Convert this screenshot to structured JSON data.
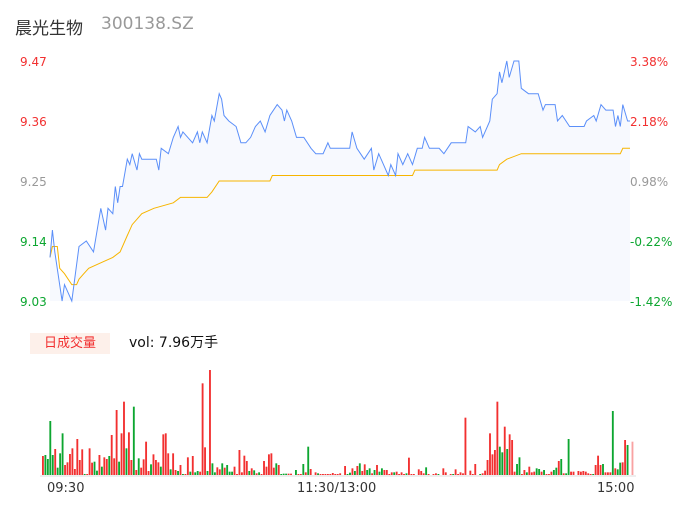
{
  "header": {
    "name": "晨光生物",
    "code": "300138.SZ"
  },
  "colors": {
    "up": "#f23030",
    "down": "#0da630",
    "flat": "#999999",
    "price_line": "#5b8ff9",
    "avg_line": "#f7b500",
    "area": "#f7f9fe"
  },
  "price_axis": {
    "left": [
      {
        "label": "9.47",
        "tone": "up"
      },
      {
        "label": "9.36",
        "tone": "up"
      },
      {
        "label": "9.25",
        "tone": "flat"
      },
      {
        "label": "9.14",
        "tone": "down"
      },
      {
        "label": "9.03",
        "tone": "down"
      }
    ],
    "right": [
      {
        "label": "3.38%",
        "tone": "up"
      },
      {
        "label": "2.18%",
        "tone": "up"
      },
      {
        "label": "0.98%",
        "tone": "flat"
      },
      {
        "label": "-0.22%",
        "tone": "down"
      },
      {
        "label": "-1.42%",
        "tone": "down"
      }
    ],
    "min": 9.03,
    "max": 9.47
  },
  "volume": {
    "tag": "日成交量",
    "text": "vol: 7.96万手"
  },
  "time_axis": [
    "09:30",
    "11:30/13:00",
    "15:00"
  ],
  "chart_data": {
    "type": "line",
    "minutes_total": 240,
    "price": [
      [
        0,
        9.11
      ],
      [
        1,
        9.16
      ],
      [
        2,
        9.12
      ],
      [
        5,
        9.03
      ],
      [
        6,
        9.06
      ],
      [
        9,
        9.03
      ],
      [
        12,
        9.13
      ],
      [
        15,
        9.14
      ],
      [
        18,
        9.12
      ],
      [
        21,
        9.2
      ],
      [
        23,
        9.16
      ],
      [
        24,
        9.2
      ],
      [
        26,
        9.19
      ],
      [
        27,
        9.24
      ],
      [
        28,
        9.21
      ],
      [
        29,
        9.24
      ],
      [
        30,
        9.24
      ],
      [
        32,
        9.29
      ],
      [
        33,
        9.28
      ],
      [
        34,
        9.3
      ],
      [
        36,
        9.27
      ],
      [
        37,
        9.3
      ],
      [
        38,
        9.29
      ],
      [
        40,
        9.29
      ],
      [
        44,
        9.29
      ],
      [
        45,
        9.27
      ],
      [
        46,
        9.31
      ],
      [
        49,
        9.3
      ],
      [
        51,
        9.33
      ],
      [
        53,
        9.35
      ],
      [
        54,
        9.33
      ],
      [
        55,
        9.34
      ],
      [
        57,
        9.33
      ],
      [
        59,
        9.32
      ],
      [
        61,
        9.34
      ],
      [
        62,
        9.32
      ],
      [
        63,
        9.34
      ],
      [
        65,
        9.32
      ],
      [
        67,
        9.37
      ],
      [
        68,
        9.36
      ],
      [
        70,
        9.41
      ],
      [
        71,
        9.4
      ],
      [
        72,
        9.37
      ],
      [
        74,
        9.36
      ],
      [
        77,
        9.35
      ],
      [
        79,
        9.32
      ],
      [
        81,
        9.32
      ],
      [
        83,
        9.33
      ],
      [
        85,
        9.35
      ],
      [
        87,
        9.36
      ],
      [
        89,
        9.34
      ],
      [
        91,
        9.37
      ],
      [
        94,
        9.39
      ],
      [
        96,
        9.38
      ],
      [
        97,
        9.36
      ],
      [
        98,
        9.38
      ],
      [
        100,
        9.36
      ],
      [
        102,
        9.33
      ],
      [
        105,
        9.33
      ],
      [
        108,
        9.31
      ],
      [
        110,
        9.3
      ],
      [
        113,
        9.3
      ],
      [
        115,
        9.32
      ],
      [
        116,
        9.31
      ],
      [
        124,
        9.31
      ],
      [
        125,
        9.34
      ],
      [
        127,
        9.31
      ],
      [
        130,
        9.29
      ],
      [
        133,
        9.31
      ],
      [
        134,
        9.27
      ],
      [
        136,
        9.3
      ],
      [
        138,
        9.28
      ],
      [
        140,
        9.26
      ],
      [
        141,
        9.28
      ],
      [
        143,
        9.26
      ],
      [
        144,
        9.3
      ],
      [
        146,
        9.28
      ],
      [
        148,
        9.3
      ],
      [
        150,
        9.28
      ],
      [
        152,
        9.31
      ],
      [
        154,
        9.31
      ],
      [
        155,
        9.33
      ],
      [
        157,
        9.31
      ],
      [
        161,
        9.31
      ],
      [
        163,
        9.3
      ],
      [
        166,
        9.32
      ],
      [
        168,
        9.32
      ],
      [
        172,
        9.32
      ],
      [
        173,
        9.35
      ],
      [
        176,
        9.34
      ],
      [
        178,
        9.35
      ],
      [
        179,
        9.33
      ],
      [
        182,
        9.36
      ],
      [
        183,
        9.4
      ],
      [
        185,
        9.41
      ],
      [
        186,
        9.45
      ],
      [
        187,
        9.43
      ],
      [
        189,
        9.47
      ],
      [
        190,
        9.44
      ],
      [
        192,
        9.47
      ],
      [
        194,
        9.47
      ],
      [
        195,
        9.42
      ],
      [
        198,
        9.41
      ],
      [
        202,
        9.41
      ],
      [
        204,
        9.38
      ],
      [
        205,
        9.39
      ],
      [
        209,
        9.39
      ],
      [
        210,
        9.36
      ],
      [
        212,
        9.37
      ],
      [
        215,
        9.35
      ],
      [
        221,
        9.35
      ],
      [
        222,
        9.36
      ],
      [
        225,
        9.37
      ],
      [
        226,
        9.36
      ],
      [
        228,
        9.39
      ],
      [
        230,
        9.38
      ],
      [
        233,
        9.38
      ],
      [
        234,
        9.35
      ],
      [
        235,
        9.37
      ],
      [
        236,
        9.35
      ],
      [
        237,
        9.39
      ],
      [
        239,
        9.36
      ],
      [
        240,
        9.36
      ]
    ],
    "average": [
      [
        0,
        9.11
      ],
      [
        1,
        9.13
      ],
      [
        3,
        9.13
      ],
      [
        4,
        9.09
      ],
      [
        6,
        9.08
      ],
      [
        9,
        9.06
      ],
      [
        11,
        9.06
      ],
      [
        12,
        9.07
      ],
      [
        14,
        9.08
      ],
      [
        16,
        9.09
      ],
      [
        21,
        9.1
      ],
      [
        26,
        9.11
      ],
      [
        29,
        9.12
      ],
      [
        32,
        9.15
      ],
      [
        34,
        9.17
      ],
      [
        36,
        9.18
      ],
      [
        38,
        9.19
      ],
      [
        43,
        9.2
      ],
      [
        51,
        9.21
      ],
      [
        54,
        9.22
      ],
      [
        65,
        9.22
      ],
      [
        67,
        9.23
      ],
      [
        70,
        9.25
      ],
      [
        91,
        9.25
      ],
      [
        92,
        9.26
      ],
      [
        150,
        9.26
      ],
      [
        151,
        9.27
      ],
      [
        185,
        9.27
      ],
      [
        186,
        9.28
      ],
      [
        189,
        9.29
      ],
      [
        195,
        9.3
      ],
      [
        236,
        9.3
      ],
      [
        237,
        9.31
      ],
      [
        240,
        9.31
      ]
    ],
    "volumes": [
      [
        57,
        "r"
      ],
      [
        60,
        "g"
      ],
      [
        48,
        "g"
      ],
      [
        162,
        "g"
      ],
      [
        60,
        "g"
      ],
      [
        78,
        "r"
      ],
      [
        22,
        "g"
      ],
      [
        65,
        "g"
      ],
      [
        125,
        "g"
      ],
      [
        30,
        "r"
      ],
      [
        38,
        "r"
      ],
      [
        63,
        "r"
      ],
      [
        80,
        "r"
      ],
      [
        18,
        "r"
      ],
      [
        108,
        "r"
      ],
      [
        45,
        "r"
      ],
      [
        77,
        "r"
      ],
      [
        3,
        "g"
      ],
      [
        3,
        "r"
      ],
      [
        80,
        "r"
      ],
      [
        37,
        "r"
      ],
      [
        40,
        "g"
      ],
      [
        13,
        "g"
      ],
      [
        60,
        "r"
      ],
      [
        25,
        "g"
      ],
      [
        53,
        "r"
      ],
      [
        48,
        "r"
      ],
      [
        57,
        "g"
      ],
      [
        120,
        "r"
      ],
      [
        50,
        "r"
      ],
      [
        195,
        "r"
      ],
      [
        40,
        "g"
      ],
      [
        125,
        "r"
      ],
      [
        220,
        "r"
      ],
      [
        80,
        "g"
      ],
      [
        128,
        "r"
      ],
      [
        45,
        "r"
      ],
      [
        205,
        "g"
      ],
      [
        15,
        "r"
      ],
      [
        50,
        "g"
      ],
      [
        22,
        "r"
      ],
      [
        47,
        "r"
      ],
      [
        100,
        "r"
      ],
      [
        12,
        "r"
      ],
      [
        32,
        "g"
      ],
      [
        62,
        "r"
      ],
      [
        45,
        "r"
      ],
      [
        38,
        "r"
      ],
      [
        25,
        "g"
      ],
      [
        122,
        "r"
      ],
      [
        125,
        "r"
      ],
      [
        65,
        "r"
      ],
      [
        17,
        "g"
      ],
      [
        65,
        "r"
      ],
      [
        15,
        "r"
      ],
      [
        12,
        "g"
      ],
      [
        30,
        "r"
      ],
      [
        3,
        "g"
      ],
      [
        3,
        "r"
      ],
      [
        53,
        "r"
      ],
      [
        10,
        "g"
      ],
      [
        57,
        "r"
      ],
      [
        8,
        "g"
      ],
      [
        12,
        "g"
      ],
      [
        10,
        "r"
      ],
      [
        275,
        "r"
      ],
      [
        83,
        "r"
      ],
      [
        12,
        "g"
      ],
      [
        315,
        "r"
      ],
      [
        35,
        "g"
      ],
      [
        8,
        "g"
      ],
      [
        23,
        "r"
      ],
      [
        17,
        "r"
      ],
      [
        35,
        "g"
      ],
      [
        22,
        "r"
      ],
      [
        30,
        "g"
      ],
      [
        10,
        "g"
      ],
      [
        10,
        "g"
      ],
      [
        25,
        "r"
      ],
      [
        3,
        "r"
      ],
      [
        75,
        "r"
      ],
      [
        8,
        "r"
      ],
      [
        58,
        "r"
      ],
      [
        42,
        "r"
      ],
      [
        12,
        "g"
      ],
      [
        20,
        "r"
      ],
      [
        14,
        "g"
      ],
      [
        5,
        "r"
      ],
      [
        8,
        "g"
      ],
      [
        3,
        "r"
      ],
      [
        42,
        "r"
      ],
      [
        25,
        "r"
      ],
      [
        62,
        "r"
      ],
      [
        65,
        "r"
      ],
      [
        22,
        "r"
      ],
      [
        35,
        "g"
      ],
      [
        30,
        "r"
      ],
      [
        3,
        "g"
      ],
      [
        4,
        "g"
      ],
      [
        4,
        "g"
      ],
      [
        4,
        "r"
      ],
      [
        4,
        "r"
      ],
      [
        0,
        "r"
      ],
      [
        15,
        "g"
      ],
      [
        3,
        "r"
      ],
      [
        3,
        "r"
      ],
      [
        33,
        "g"
      ],
      [
        8,
        "r"
      ],
      [
        85,
        "g"
      ],
      [
        18,
        "r"
      ],
      [
        0,
        "r"
      ],
      [
        8,
        "r"
      ],
      [
        5,
        "g"
      ],
      [
        3,
        "r"
      ],
      [
        3,
        "r"
      ],
      [
        3,
        "r"
      ],
      [
        3,
        "r"
      ],
      [
        3,
        "r"
      ],
      [
        6,
        "r"
      ],
      [
        3,
        "r"
      ],
      [
        3,
        "r"
      ],
      [
        5,
        "r"
      ],
      [
        0,
        "r"
      ],
      [
        27,
        "r"
      ],
      [
        3,
        "g"
      ],
      [
        7,
        "g"
      ],
      [
        20,
        "r"
      ],
      [
        12,
        "g"
      ],
      [
        27,
        "r"
      ],
      [
        35,
        "g"
      ],
      [
        12,
        "r"
      ],
      [
        32,
        "r"
      ],
      [
        15,
        "g"
      ],
      [
        20,
        "g"
      ],
      [
        5,
        "r"
      ],
      [
        15,
        "g"
      ],
      [
        30,
        "r"
      ],
      [
        10,
        "g"
      ],
      [
        20,
        "g"
      ],
      [
        15,
        "r"
      ],
      [
        15,
        "r"
      ],
      [
        3,
        "r"
      ],
      [
        8,
        "r"
      ],
      [
        8,
        "g"
      ],
      [
        10,
        "r"
      ],
      [
        3,
        "r"
      ],
      [
        8,
        "r"
      ],
      [
        3,
        "r"
      ],
      [
        5,
        "g"
      ],
      [
        52,
        "r"
      ],
      [
        3,
        "r"
      ],
      [
        3,
        "r"
      ],
      [
        0,
        "r"
      ],
      [
        17,
        "r"
      ],
      [
        12,
        "r"
      ],
      [
        5,
        "r"
      ],
      [
        23,
        "g"
      ],
      [
        3,
        "r"
      ],
      [
        0,
        "r"
      ],
      [
        3,
        "r"
      ],
      [
        5,
        "r"
      ],
      [
        3,
        "g"
      ],
      [
        0,
        "r"
      ],
      [
        20,
        "r"
      ],
      [
        8,
        "r"
      ],
      [
        0,
        "r"
      ],
      [
        3,
        "r"
      ],
      [
        3,
        "g"
      ],
      [
        17,
        "r"
      ],
      [
        3,
        "r"
      ],
      [
        8,
        "r"
      ],
      [
        5,
        "r"
      ],
      [
        172,
        "r"
      ],
      [
        0,
        "r"
      ],
      [
        13,
        "r"
      ],
      [
        3,
        "r"
      ],
      [
        33,
        "r"
      ],
      [
        0,
        "r"
      ],
      [
        3,
        "g"
      ],
      [
        5,
        "r"
      ],
      [
        13,
        "r"
      ],
      [
        45,
        "r"
      ],
      [
        125,
        "r"
      ],
      [
        62,
        "r"
      ],
      [
        75,
        "r"
      ],
      [
        220,
        "r"
      ],
      [
        85,
        "g"
      ],
      [
        68,
        "g"
      ],
      [
        145,
        "r"
      ],
      [
        78,
        "g"
      ],
      [
        122,
        "r"
      ],
      [
        105,
        "r"
      ],
      [
        10,
        "r"
      ],
      [
        33,
        "g"
      ],
      [
        53,
        "g"
      ],
      [
        3,
        "r"
      ],
      [
        15,
        "r"
      ],
      [
        8,
        "g"
      ],
      [
        25,
        "r"
      ],
      [
        8,
        "r"
      ],
      [
        10,
        "r"
      ],
      [
        20,
        "g"
      ],
      [
        18,
        "g"
      ],
      [
        10,
        "r"
      ],
      [
        15,
        "g"
      ],
      [
        3,
        "r"
      ],
      [
        3,
        "r"
      ],
      [
        10,
        "r"
      ],
      [
        15,
        "g"
      ],
      [
        22,
        "g"
      ],
      [
        42,
        "r"
      ],
      [
        48,
        "g"
      ],
      [
        5,
        "r"
      ],
      [
        5,
        "g"
      ],
      [
        108,
        "g"
      ],
      [
        10,
        "r"
      ],
      [
        10,
        "r"
      ],
      [
        0,
        "r"
      ],
      [
        12,
        "r"
      ],
      [
        10,
        "r"
      ],
      [
        12,
        "r"
      ],
      [
        10,
        "r"
      ],
      [
        5,
        "r"
      ],
      [
        3,
        "r"
      ],
      [
        3,
        "g"
      ],
      [
        30,
        "r"
      ],
      [
        58,
        "r"
      ],
      [
        30,
        "r"
      ],
      [
        33,
        "g"
      ],
      [
        8,
        "r"
      ],
      [
        8,
        "r"
      ],
      [
        8,
        "r"
      ],
      [
        192,
        "g"
      ],
      [
        20,
        "r"
      ],
      [
        17,
        "g"
      ],
      [
        37,
        "g"
      ],
      [
        38,
        "r"
      ],
      [
        105,
        "r"
      ],
      [
        90,
        "g"
      ],
      [
        0,
        "r"
      ],
      [
        100,
        "r"
      ]
    ]
  }
}
